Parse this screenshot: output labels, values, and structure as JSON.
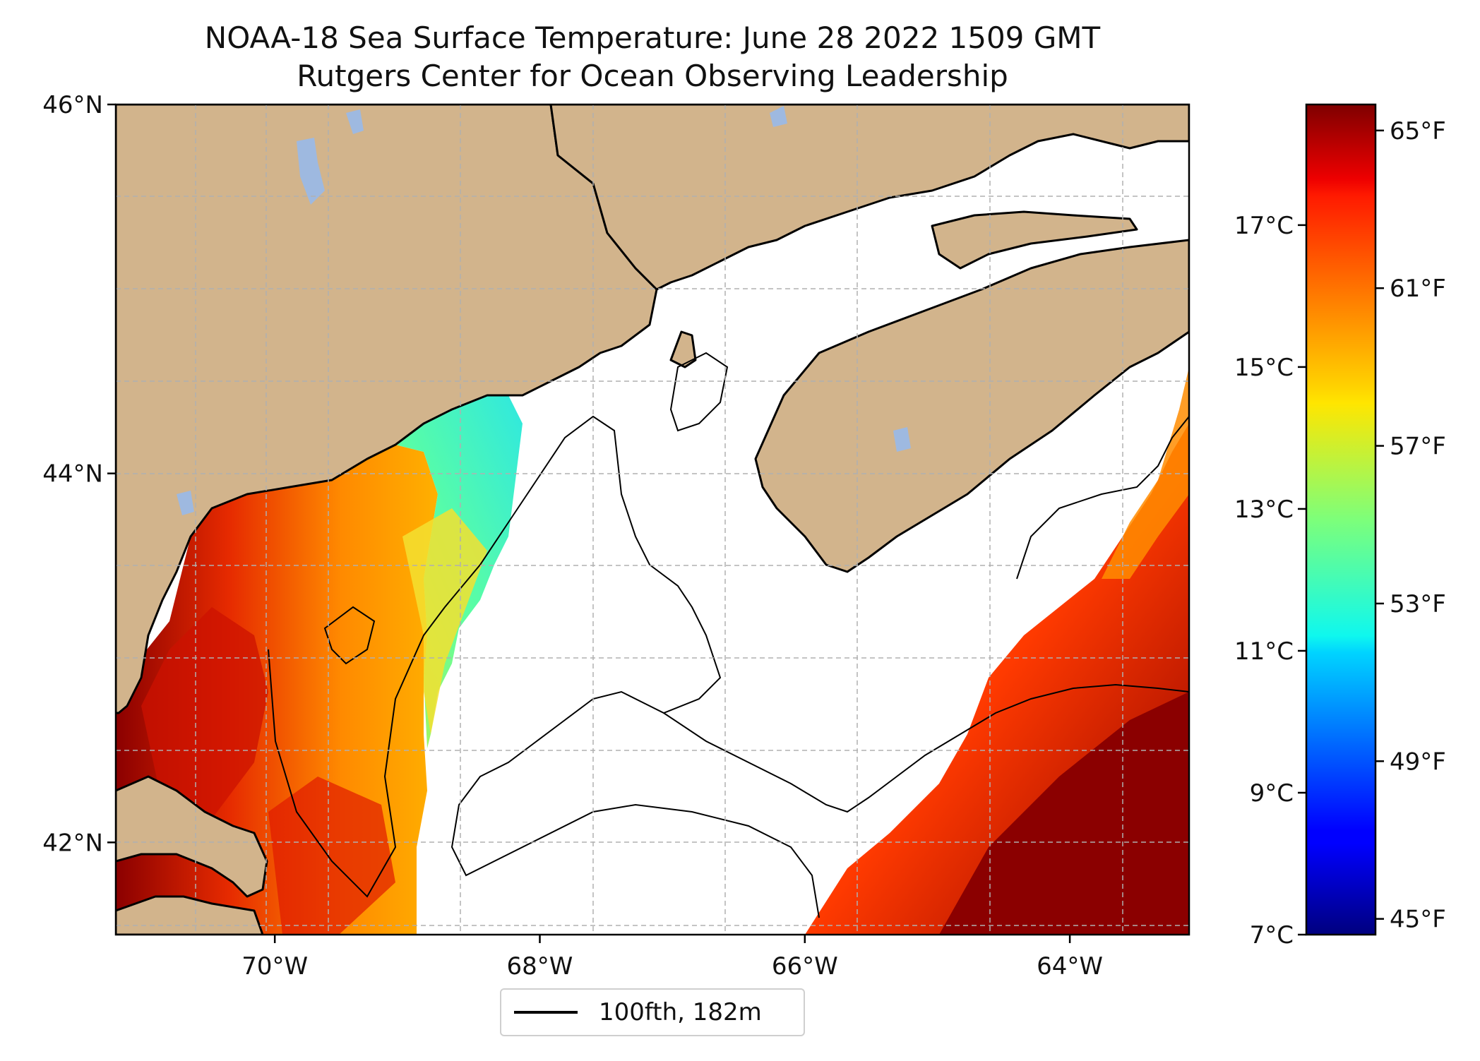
{
  "title": "NOAA-18 Sea Surface Temperature: June 28 2022 1509 GMT",
  "subtitle": "Rutgers Center for Ocean Observing Leadership",
  "map": {
    "lon_range": [
      -71.2,
      -63.1
    ],
    "lat_range": [
      41.5,
      46.0
    ],
    "lat_ticks": [
      {
        "value": 46,
        "label": "46°N"
      },
      {
        "value": 44,
        "label": "44°N"
      },
      {
        "value": 42,
        "label": "42°N"
      }
    ],
    "lon_ticks": [
      {
        "value": -70,
        "label": "70°W"
      },
      {
        "value": -68,
        "label": "68°W"
      },
      {
        "value": -66,
        "label": "66°W"
      },
      {
        "value": -64,
        "label": "64°W"
      }
    ],
    "gridlines": true,
    "land_color": "#d2b48c",
    "lake_color": "#9eb9e0",
    "contour_color": "#000000"
  },
  "colorbar": {
    "colormap": "jet",
    "range_c": [
      7,
      18.7
    ],
    "celsius_ticks": [
      {
        "value": 17,
        "label": "17°C"
      },
      {
        "value": 15,
        "label": "15°C"
      },
      {
        "value": 13,
        "label": "13°C"
      },
      {
        "value": 11,
        "label": "11°C"
      },
      {
        "value": 9,
        "label": "9°C"
      },
      {
        "value": 7,
        "label": "7°C"
      }
    ],
    "fahrenheit_ticks": [
      {
        "value": 65,
        "label": "65°F"
      },
      {
        "value": 61,
        "label": "61°F"
      },
      {
        "value": 57,
        "label": "57°F"
      },
      {
        "value": 53,
        "label": "53°F"
      },
      {
        "value": 49,
        "label": "49°F"
      },
      {
        "value": 45,
        "label": "45°F"
      }
    ]
  },
  "legend": {
    "label": "100fth, 182m",
    "placement": "bottom-center"
  }
}
